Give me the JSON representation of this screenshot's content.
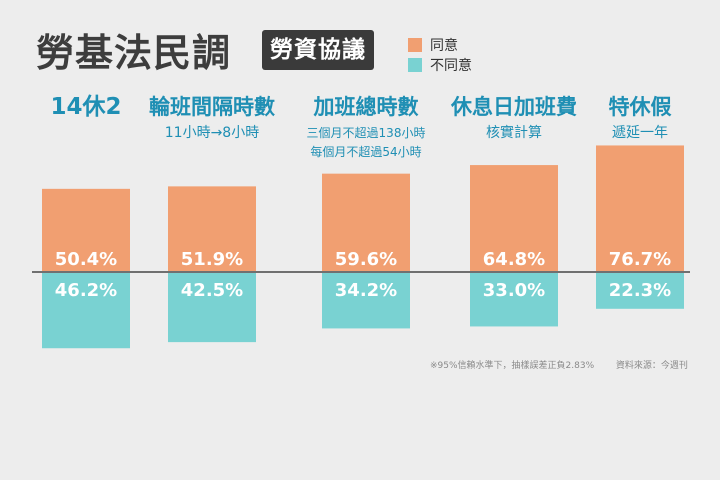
{
  "header": {
    "title": "勞基法民調",
    "tag": "勞資協議"
  },
  "legend": {
    "agree": "同意",
    "disagree": "不同意"
  },
  "colors": {
    "agree": "#f19f71",
    "disagree": "#79d2d2",
    "baseline": "#707070",
    "heading": "#1f8fb4",
    "subtext": "#1f8fb4",
    "value_text": "#ffffff"
  },
  "chart_data": {
    "type": "bar",
    "categories": [
      {
        "heading": "14休2",
        "sub": []
      },
      {
        "heading": "輪班間隔時數",
        "sub": [
          "11小時→8小時"
        ]
      },
      {
        "heading": "加班總時數",
        "sub": [
          "三個月不超過138小時",
          "每個月不超過54小時"
        ]
      },
      {
        "heading": "休息日加班費",
        "sub": [
          "核實計算"
        ]
      },
      {
        "heading": "特休假",
        "sub": [
          "遞延一年"
        ]
      }
    ],
    "series": [
      {
        "name": "同意",
        "values": [
          50.4,
          51.9,
          59.6,
          64.8,
          76.7
        ]
      },
      {
        "name": "不同意",
        "values": [
          46.2,
          42.5,
          34.2,
          33.0,
          22.3
        ]
      }
    ],
    "value_labels": {
      "agree": [
        "50.4%",
        "51.9%",
        "59.6%",
        "64.8%",
        "76.7%"
      ],
      "disagree": [
        "46.2%",
        "42.5%",
        "34.2%",
        "33.0%",
        "22.3%"
      ]
    },
    "unit": "%",
    "title": "勞基法民調",
    "xlabel": "",
    "ylabel": "",
    "legend_position": "top-right",
    "grid": false
  },
  "footnote": {
    "margin_note": "※95%信賴水準下，抽樣誤差正負2.83%",
    "source": "資料來源：今週刊"
  }
}
